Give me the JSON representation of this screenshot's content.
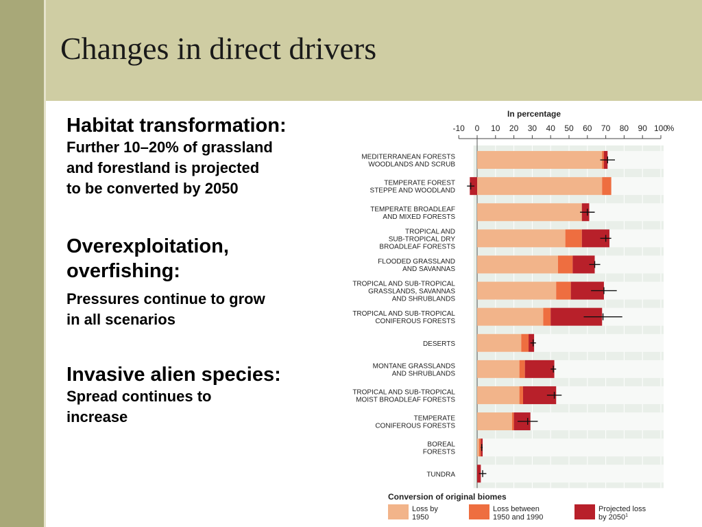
{
  "slide": {
    "title": "Changes in direct drivers",
    "blocks": [
      {
        "heading": "Habitat transformation:",
        "lines": [
          "Further 10–20% of grassland",
          "and forestland is projected",
          "to be converted by 2050"
        ]
      },
      {
        "heading_lines": [
          "Overexploitation,",
          "overfishing:"
        ],
        "lines": [
          "Pressures continue to grow",
          "in all scenarios"
        ]
      },
      {
        "heading": "Invasive alien species:",
        "lines": [
          "Spread continues to",
          "increase"
        ]
      }
    ]
  },
  "colors": {
    "loss_by_1950": "#f2b48a",
    "loss_1950_1990": "#ee6e40",
    "projected_loss_2050": "#b8202a",
    "header_bg": "#cfcda3",
    "left_bar": "#a8a878"
  },
  "chart_data": {
    "type": "bar",
    "orientation": "horizontal",
    "stacked": true,
    "axis_title": "In percentage",
    "x_ticks": [
      "-10",
      "0",
      "10",
      "20",
      "30",
      "40",
      "50",
      "60",
      "70",
      "80",
      "90",
      "100"
    ],
    "x_unit": "%",
    "xlim": [
      -10,
      100
    ],
    "categories": [
      [
        "MEDITERRANEAN FORESTS",
        "WOODLANDS AND SCRUB"
      ],
      [
        "TEMPERATE FOREST",
        "STEPPE AND WOODLAND"
      ],
      [
        "TEMPERATE BROADLEAF",
        "AND MIXED FORESTS"
      ],
      [
        "TROPICAL AND",
        "SUB-TROPICAL DRY",
        "BROADLEAF FORESTS"
      ],
      [
        "FLOODED GRASSLAND",
        "AND SAVANNAS"
      ],
      [
        "TROPICAL AND SUB-TROPICAL",
        "GRASSLANDS, SAVANNAS",
        "AND SHRUBLANDS"
      ],
      [
        "TROPICAL AND SUB-TROPICAL",
        "CONIFEROUS FORESTS"
      ],
      [
        "DESERTS"
      ],
      [
        "MONTANE GRASSLANDS",
        "AND SHRUBLANDS"
      ],
      [
        "TROPICAL AND SUB-TROPICAL",
        "MOIST BROADLEAF FORESTS"
      ],
      [
        "TEMPERATE",
        "CONIFEROUS FORESTS"
      ],
      [
        "BOREAL",
        "FORESTS"
      ],
      [
        "TUNDRA"
      ]
    ],
    "series": [
      {
        "name": "Loss by 1950",
        "label_lines": [
          "Loss by",
          "1950"
        ],
        "values": [
          68,
          68,
          57,
          48,
          44,
          43,
          36,
          24,
          23,
          23,
          19,
          1,
          0
        ]
      },
      {
        "name": "Loss between 1950 and 1990",
        "label_lines": [
          "Loss between",
          "1950 and 1990"
        ],
        "values": [
          1,
          5,
          0,
          9,
          8,
          8,
          4,
          4,
          3,
          2,
          1,
          1,
          0
        ]
      },
      {
        "name": "Projected loss by 2050",
        "label_lines": [
          "Projected loss",
          "by 2050"
        ],
        "label_suffix": "1",
        "values": [
          2,
          -4,
          4,
          15,
          12,
          18,
          28,
          3,
          16,
          18,
          9,
          1,
          2
        ]
      }
    ],
    "error_bars": [
      {
        "low": 67,
        "high": 75
      },
      {
        "low": -5.5,
        "high": -1.5
      },
      {
        "low": 56,
        "high": 64
      },
      {
        "low": 67,
        "high": 73
      },
      {
        "low": 61,
        "high": 67
      },
      {
        "low": 62,
        "high": 76
      },
      {
        "low": 58,
        "high": 79
      },
      {
        "low": 29,
        "high": 32
      },
      {
        "low": 40,
        "high": 43
      },
      {
        "low": 38,
        "high": 46
      },
      {
        "low": 22,
        "high": 33
      },
      {
        "low": 2,
        "high": 3
      },
      {
        "low": 1,
        "high": 5
      }
    ],
    "legend": {
      "title": "Conversion of original biomes",
      "position": "bottom"
    }
  }
}
